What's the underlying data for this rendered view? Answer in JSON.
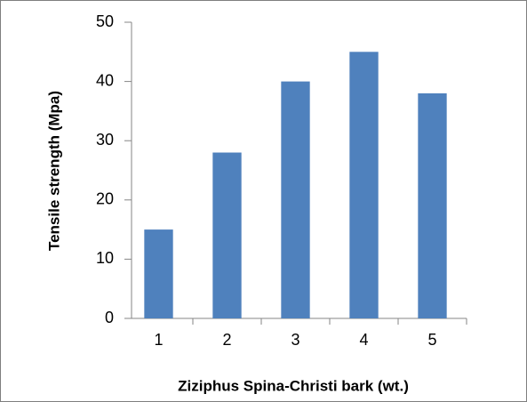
{
  "chart_data": {
    "type": "bar",
    "x_label": "Ziziphus Spina-Christi bark (wt.)",
    "y_label": "Tensile strength (Mpa)",
    "categories": [
      "1",
      "2",
      "3",
      "4",
      "5"
    ],
    "values": [
      15,
      28,
      40,
      45,
      38
    ],
    "color": "#4f81bd",
    "ylim": [
      0,
      50
    ],
    "yticks": [
      0,
      10,
      20,
      30,
      40,
      50
    ],
    "grid": false
  }
}
